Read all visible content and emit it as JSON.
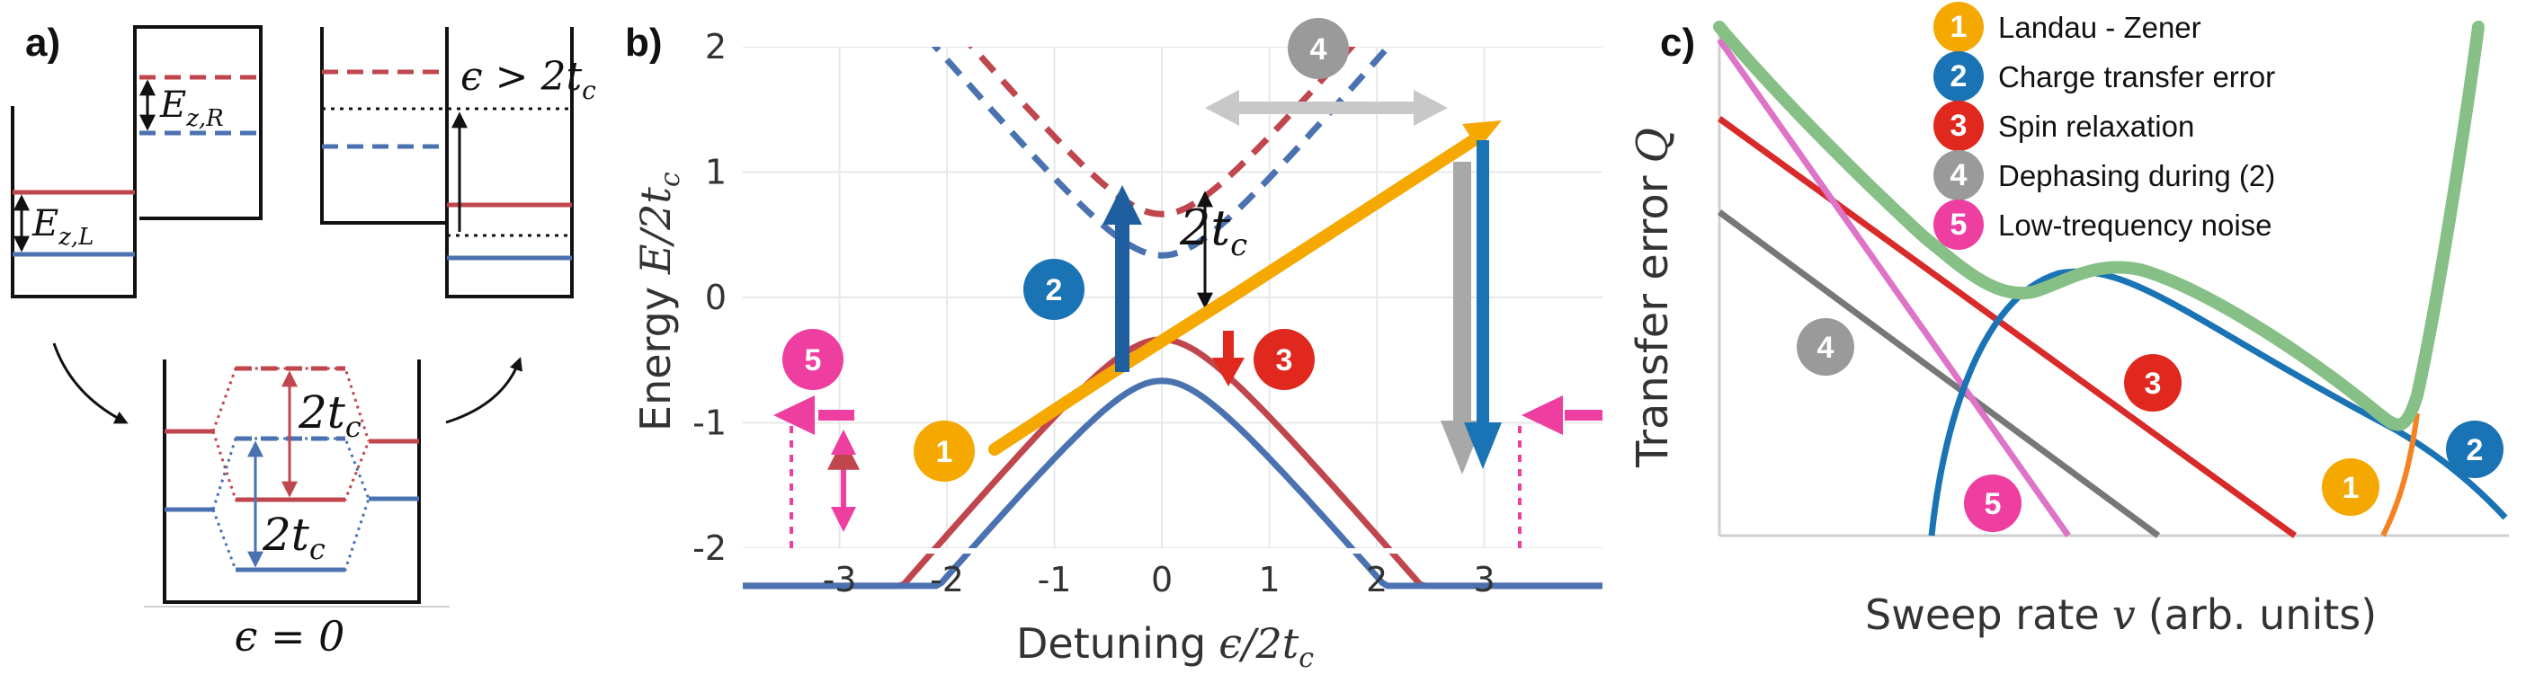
{
  "panel_a": {
    "label": "a)",
    "ez_r": "E",
    "ez_r_sub": "z,R",
    "ez_l": "E",
    "ez_l_sub": "z,L",
    "eps_cond": "ϵ > 2t",
    "eps_cond_sub": "c",
    "two_t_top": "2t",
    "two_t_top_sub": "c",
    "two_t_bot": "2t",
    "two_t_bot_sub": "c",
    "eps_zero": "ϵ = 0"
  },
  "panel_b": {
    "label": "b)",
    "ylabel": "Energy",
    "ylabel_math": "E/2t",
    "ylabel_math_sub": "c",
    "xlabel": "Detuning",
    "xlabel_math": "ϵ/2t",
    "xlabel_math_sub": "c",
    "gap_label": "2t",
    "gap_label_sub": "c",
    "badges": [
      "1",
      "2",
      "3",
      "4",
      "5"
    ]
  },
  "panel_c": {
    "label": "c)",
    "ylabel": "Transfer error",
    "ylabel_math": "Q",
    "xlabel": "Sweep rate",
    "xlabel_math": "v",
    "xlabel_units": "(arb. units)",
    "legend": [
      {
        "num": "1",
        "label": "Landau - Zener",
        "color": "#f5a800"
      },
      {
        "num": "2",
        "label": "Charge transfer error",
        "color": "#1a73b4"
      },
      {
        "num": "3",
        "label": "Spin relaxation",
        "color": "#e0281e"
      },
      {
        "num": "4",
        "label": "Dephasing during (2)",
        "color": "#9a9a9a"
      },
      {
        "num": "5",
        "label": "Low-trequency noise",
        "color": "#ee3fa0"
      }
    ],
    "badges": [
      "1",
      "2",
      "3",
      "4",
      "5"
    ]
  },
  "colors": {
    "red_level": "#c0464e",
    "blue_level": "#4a72b0",
    "orange": "#f5a800",
    "blue_arrow": "#1f5fa0",
    "red_arrow": "#e0281e",
    "gray_arrow": "#a8a8a8",
    "pink": "#ee3fa0",
    "green_envelope": "#7fbf7f"
  },
  "chart_data": {
    "type": "line",
    "x_ticks": [
      "-3",
      "-2",
      "-1",
      "0",
      "1",
      "2",
      "3"
    ],
    "y_ticks": [
      "-2",
      "-1",
      "0",
      "1",
      "2"
    ],
    "xlim": [
      -3.9,
      4.1
    ],
    "ylim": [
      -2,
      2
    ],
    "grid": true,
    "tc": 0.5,
    "ez_upper": 0.33,
    "ez_lower": 0.67,
    "series": [
      {
        "style": "solid",
        "color": "#c0464e",
        "sign": 1,
        "offset": 0.33,
        "branch": -1
      },
      {
        "style": "solid",
        "color": "#4a72b0",
        "sign": -1,
        "offset": 0.33,
        "branch": -1
      },
      {
        "style": "dashed",
        "color": "#c0464e",
        "sign": 1,
        "offset": 0.33,
        "branch": 1
      },
      {
        "style": "dashed",
        "color": "#4a72b0",
        "sign": -1,
        "offset": 0.33,
        "branch": 1
      }
    ]
  }
}
